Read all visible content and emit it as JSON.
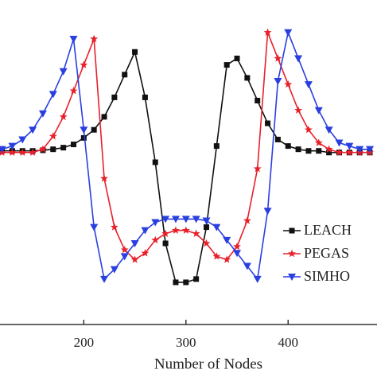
{
  "chart_data": {
    "type": "line",
    "x_label": "Number of Nodes",
    "x": [
      120,
      130,
      140,
      150,
      160,
      170,
      180,
      190,
      200,
      210,
      220,
      230,
      240,
      250,
      260,
      270,
      280,
      290,
      300,
      310,
      320,
      330,
      340,
      350,
      360,
      370,
      380,
      390,
      400,
      410,
      420,
      430,
      440,
      450,
      460,
      470,
      480
    ],
    "xlim": [
      118,
      487
    ],
    "xticks": [
      200,
      300,
      400
    ],
    "ylim": [
      0,
      100
    ],
    "series": [
      {
        "name": "LEACH",
        "color": "#111111",
        "marker": "square",
        "values": [
          53.5,
          53.5,
          53.5,
          53.5,
          53.7,
          54,
          54.5,
          55.5,
          57.5,
          60,
          64,
          70,
          77,
          84,
          70,
          50,
          25,
          13,
          13,
          14,
          30,
          55,
          80,
          82,
          76,
          69,
          62,
          57,
          55,
          54,
          53.5,
          53.5,
          53,
          53,
          53,
          53,
          53
        ]
      },
      {
        "name": "PEGAS",
        "color": "#e8202a",
        "marker": "star",
        "values": [
          53,
          53,
          53,
          53,
          54,
          58,
          64,
          72,
          80,
          88,
          45,
          30,
          23,
          20,
          22,
          26,
          28,
          29,
          29,
          28,
          25,
          21,
          20,
          24,
          32,
          48,
          90,
          82,
          74,
          66,
          60,
          56,
          54,
          53,
          53,
          53,
          53
        ]
      },
      {
        "name": "SIMHO",
        "color": "#2a3fe0",
        "marker": "triangle-down",
        "values": [
          54,
          55,
          57,
          60,
          65,
          71,
          78,
          88,
          60,
          30,
          14,
          17,
          21,
          25,
          29,
          31.5,
          32.5,
          32.5,
          32.5,
          32.5,
          32,
          30,
          26,
          22,
          18,
          14,
          35,
          75,
          90,
          82,
          74,
          66,
          60,
          56,
          55,
          54,
          54
        ]
      }
    ]
  }
}
